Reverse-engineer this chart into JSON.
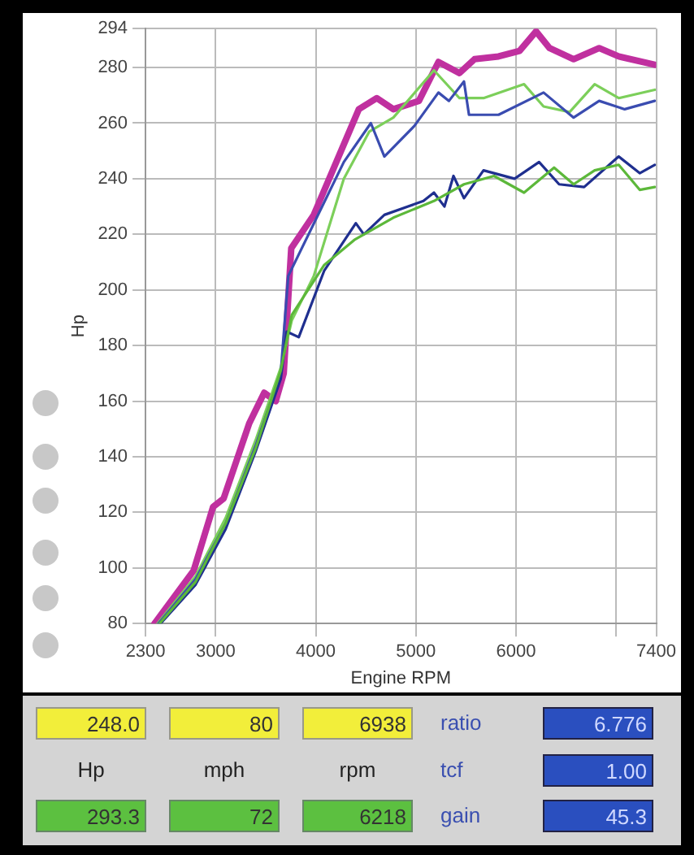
{
  "chart_data": {
    "type": "line",
    "xlabel": "Engine RPM",
    "ylabel": "Hp",
    "xlim": [
      2300,
      7400
    ],
    "ylim": [
      80,
      294
    ],
    "xticks": [
      2300,
      3000,
      4000,
      5000,
      6000,
      {
        "value": 7000,
        "label": null
      },
      7400
    ],
    "yticks": [
      80,
      100,
      120,
      140,
      160,
      180,
      200,
      220,
      240,
      260,
      280,
      294
    ],
    "grid": true,
    "legend": false,
    "marker": "none",
    "line_style": "solid",
    "series": [
      {
        "color": "#c0309f",
        "x": [
          2390,
          2780,
          2975,
          3080,
          3335,
          3485,
          3600,
          3680,
          3755,
          3980,
          4430,
          4610,
          4775,
          5030,
          5225,
          5435,
          5585,
          5825,
          6035,
          6200,
          6335,
          6575,
          6830,
          7025,
          7385
        ],
        "values": [
          80,
          99,
          122,
          125,
          152,
          163,
          160,
          170,
          215,
          227,
          265,
          269,
          265,
          268,
          282,
          278,
          283,
          284,
          286,
          293,
          287,
          283,
          287,
          284,
          281
        ]
      },
      {
        "color": "#7ccf5a",
        "x": [
          2420,
          2800,
          3100,
          3400,
          3650,
          3760,
          3980,
          4280,
          4535,
          4775,
          5180,
          5435,
          5675,
          6080,
          6275,
          6535,
          6785,
          7025,
          7385
        ],
        "values": [
          80,
          97,
          118,
          146,
          172,
          189,
          205,
          240,
          257,
          262,
          279,
          269,
          269,
          274,
          266,
          264,
          274,
          269,
          272
        ]
      },
      {
        "color": "#3a4cb0",
        "x": [
          2430,
          2800,
          3100,
          3400,
          3650,
          3725,
          4280,
          4550,
          4685,
          4985,
          5225,
          5330,
          5480,
          5530,
          5825,
          6275,
          6575,
          6830,
          7085,
          7385
        ],
        "values": [
          80,
          96,
          116,
          144,
          170,
          205,
          246,
          260,
          248,
          259,
          271,
          268,
          275,
          263,
          263,
          271,
          262,
          268,
          265,
          268
        ]
      },
      {
        "color": "#1f2f8f",
        "x": [
          2450,
          2800,
          3100,
          3400,
          3650,
          3710,
          3830,
          4085,
          4400,
          4480,
          4685,
          5075,
          5180,
          5285,
          5375,
          5480,
          5675,
          5985,
          6230,
          6430,
          6680,
          7025,
          7235,
          7385
        ],
        "values": [
          80,
          94,
          114,
          142,
          168,
          185,
          183,
          207,
          224,
          220,
          227,
          232,
          235,
          230,
          241,
          233,
          243,
          240,
          246,
          238,
          237,
          248,
          242,
          245
        ]
      },
      {
        "color": "#5cb83a",
        "x": [
          2440,
          2800,
          3100,
          3400,
          3650,
          3760,
          4085,
          4385,
          4775,
          5180,
          5480,
          5780,
          6080,
          6380,
          6575,
          6785,
          7025,
          7235,
          7385
        ],
        "values": [
          80,
          95,
          116,
          143,
          171,
          191,
          209,
          218,
          226,
          232,
          238,
          241,
          235,
          244,
          238,
          243,
          245,
          236,
          237
        ]
      }
    ],
    "annotations": [
      "248.0",
      "80",
      "6938",
      "ratio",
      "6.776",
      "Hp",
      "mph",
      "rpm",
      "tcf",
      "1.00",
      "293.3",
      "72",
      "6218",
      "gain",
      "45.3"
    ]
  }
}
